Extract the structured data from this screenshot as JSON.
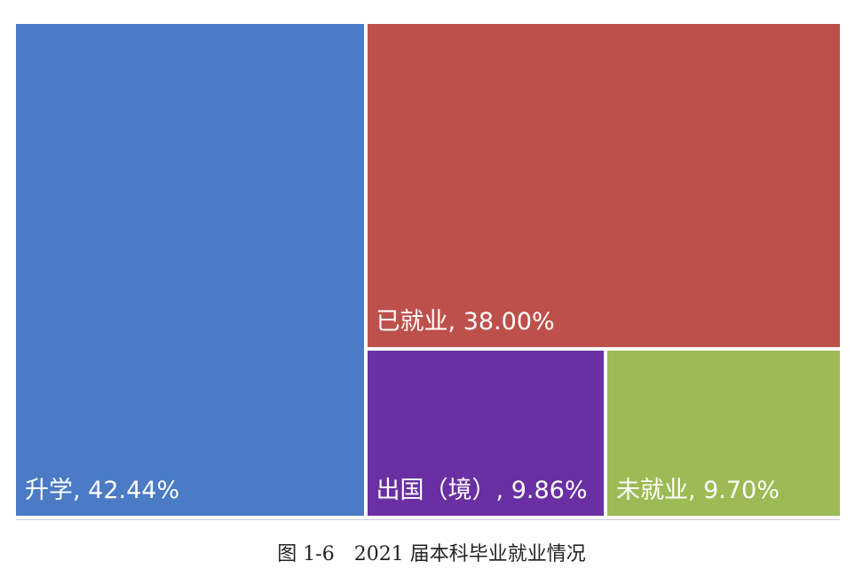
{
  "chart_data": {
    "type": "treemap",
    "title": "图 1-6　2021 届本科毕业就业情况",
    "labels": [
      "升学, 42.44%",
      "已就业, 38.00%",
      "出国（境）, 9.86%",
      "未就业, 9.70%"
    ],
    "values": [
      42.44,
      38.0,
      9.86,
      9.7
    ],
    "colors": [
      "#4a7bc4",
      "#be504c",
      "#6a2fa2",
      "#9cbb55"
    ]
  }
}
